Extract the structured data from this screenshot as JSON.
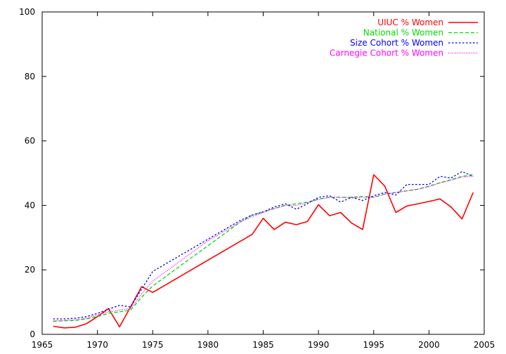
{
  "chart_data": {
    "type": "line",
    "title": "",
    "xlabel": "",
    "ylabel": "",
    "xlim": [
      1965,
      2005
    ],
    "ylim": [
      0,
      100
    ],
    "xticks": [
      1965,
      1970,
      1975,
      1980,
      1985,
      1990,
      1995,
      2000,
      2005
    ],
    "yticks": [
      0,
      20,
      40,
      60,
      80,
      100
    ],
    "grid": false,
    "legend_position": "top-right",
    "series": [
      {
        "name": "UIUC % Women",
        "color": "#ff0000",
        "dash": "solid",
        "x": [
          1966,
          1967,
          1968,
          1969,
          1970,
          1971,
          1972,
          1973,
          1974,
          1975,
          1984,
          1985,
          1986,
          1987,
          1988,
          1989,
          1990,
          1991,
          1992,
          1993,
          1994,
          1995,
          1996,
          1997,
          1998,
          1999,
          2000,
          2001,
          2002,
          2003,
          2004
        ],
        "y": [
          2.5,
          2.0,
          2.2,
          3.3,
          5.5,
          8.0,
          2.3,
          8.5,
          14.8,
          13.0,
          31.0,
          36.0,
          32.5,
          34.8,
          34.0,
          35.0,
          40.2,
          36.8,
          37.8,
          34.5,
          32.5,
          49.5,
          46.0,
          37.8,
          39.8,
          40.5,
          41.2,
          42.0,
          39.5,
          35.8,
          44.0
        ]
      },
      {
        "name": "National % Women",
        "color": "#00dd00",
        "dash": "dashed",
        "x": [
          1966,
          1967,
          1968,
          1969,
          1970,
          1971,
          1972,
          1973,
          1974,
          1975,
          1976,
          1977,
          1978,
          1979,
          1980,
          1981,
          1982,
          1983,
          1984,
          1985,
          1986,
          1987,
          1988,
          1989,
          1990,
          1991,
          1992,
          1993,
          1994,
          1995,
          1996,
          1997,
          1998,
          1999,
          2000,
          2001,
          2002,
          2003,
          2004
        ],
        "y": [
          4.0,
          4.2,
          4.3,
          4.8,
          5.5,
          6.5,
          7.0,
          7.5,
          11.5,
          15.0,
          17.5,
          20.0,
          22.5,
          25.0,
          27.5,
          30.0,
          32.5,
          35.0,
          37.0,
          38.0,
          39.0,
          40.0,
          40.5,
          41.0,
          42.0,
          42.5,
          42.5,
          42.5,
          42.8,
          42.5,
          43.5,
          44.0,
          44.5,
          45.0,
          46.0,
          47.0,
          48.0,
          49.0,
          49.5
        ]
      },
      {
        "name": "Size Cohort % Women",
        "color": "#0000ff",
        "dash": "dotted",
        "x": [
          1966,
          1967,
          1968,
          1969,
          1970,
          1971,
          1972,
          1973,
          1974,
          1975,
          1976,
          1977,
          1978,
          1979,
          1980,
          1981,
          1982,
          1983,
          1984,
          1985,
          1986,
          1987,
          1988,
          1989,
          1990,
          1991,
          1992,
          1993,
          1994,
          1995,
          1996,
          1997,
          1998,
          1999,
          2000,
          2001,
          2002,
          2003,
          2004
        ],
        "y": [
          4.8,
          4.8,
          5.0,
          5.5,
          6.5,
          7.8,
          9.0,
          8.5,
          14.0,
          19.5,
          21.5,
          23.5,
          25.5,
          27.5,
          29.5,
          31.5,
          33.5,
          35.5,
          37.0,
          38.0,
          39.5,
          40.5,
          38.8,
          40.5,
          42.5,
          43.0,
          41.0,
          42.5,
          41.5,
          43.0,
          44.0,
          43.2,
          46.5,
          46.5,
          46.5,
          49.0,
          48.5,
          50.5,
          49.0
        ]
      },
      {
        "name": "Carnegie Cohort % Women",
        "color": "#ff00ff",
        "dash": "fine-dotted",
        "x": [
          1966,
          1967,
          1968,
          1969,
          1970,
          1971,
          1972,
          1973,
          1974,
          1975,
          1976,
          1977,
          1978,
          1979,
          1980,
          1981,
          1982,
          1983,
          1984,
          1985,
          1986,
          1987,
          1988,
          1989,
          1990,
          1991,
          1992,
          1993,
          1994,
          1995,
          1996,
          1997,
          1998,
          1999,
          2000,
          2001,
          2002,
          2003,
          2004
        ],
        "y": [
          4.2,
          4.3,
          4.5,
          5.0,
          6.0,
          7.0,
          7.5,
          8.0,
          12.5,
          16.5,
          19.0,
          21.5,
          24.0,
          26.5,
          29.0,
          31.0,
          33.0,
          35.0,
          36.5,
          37.8,
          39.0,
          40.0,
          40.0,
          40.8,
          41.8,
          42.5,
          42.5,
          42.3,
          42.5,
          42.5,
          43.5,
          44.0,
          44.5,
          45.0,
          45.8,
          47.0,
          47.8,
          48.8,
          49.0
        ]
      }
    ]
  }
}
